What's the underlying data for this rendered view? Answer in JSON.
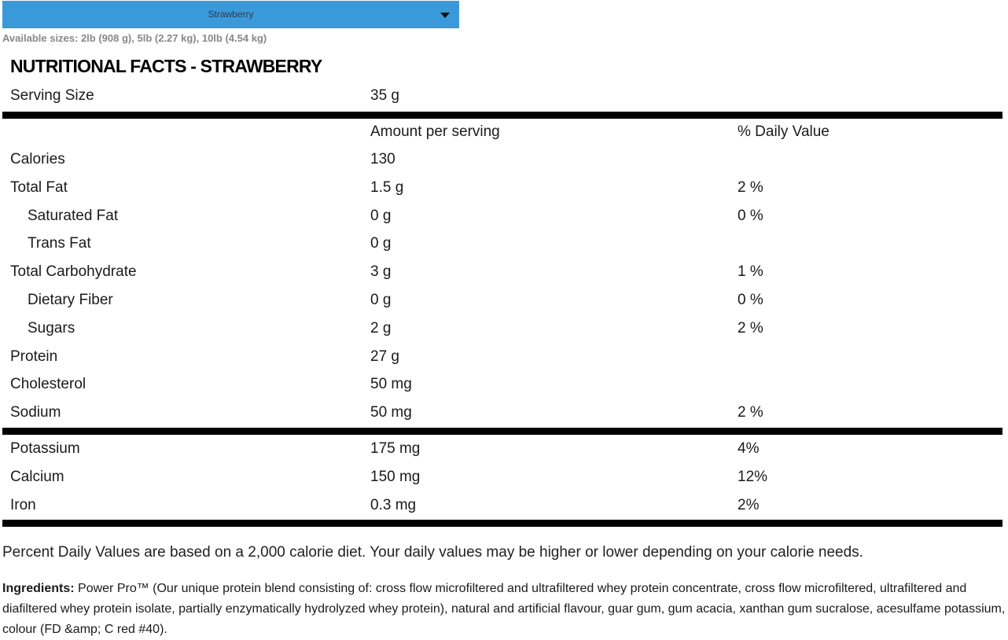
{
  "selector": {
    "value": "Strawberry"
  },
  "sizes": "Available sizes: 2lb (908 g), 5lb (2.27 kg), 10lb (4.54 kg)",
  "title": "NUTRITIONAL FACTS - STRAWBERRY",
  "serving": {
    "label": "Serving Size",
    "amount": "35 g"
  },
  "header": {
    "amount": "Amount per serving",
    "daily_value": "% Daily Value"
  },
  "nutrients": [
    {
      "name": "Calories",
      "amount": "130"
    },
    {
      "name": "Total Fat",
      "amount": "1.5 g",
      "daily_value": "2 %",
      "sub": [
        {
          "name": "Saturated Fat",
          "amount": "0 g",
          "daily_value": "0 %"
        },
        {
          "name": "Trans Fat",
          "amount": "0 g"
        }
      ]
    },
    {
      "name": "Total Carbohydrate",
      "amount": "3 g",
      "daily_value": "1 %",
      "sub": [
        {
          "name": "Dietary Fiber",
          "amount": "0 g",
          "daily_value": "0 %"
        },
        {
          "name": "Sugars",
          "amount": "2 g",
          "daily_value": "2 %"
        }
      ]
    },
    {
      "name": "Protein",
      "amount": "27 g"
    },
    {
      "name": "Cholesterol",
      "amount": "50 mg"
    },
    {
      "name": "Sodium",
      "amount": "50 mg",
      "daily_value": "2 %"
    }
  ],
  "minerals": [
    {
      "name": "Potassium",
      "amount": "175 mg",
      "daily_value": "4%"
    },
    {
      "name": "Calcium",
      "amount": "150 mg",
      "daily_value": "12%"
    },
    {
      "name": "Iron",
      "amount": "0.3 mg",
      "daily_value": "2%"
    }
  ],
  "footnote": "Percent Daily Values are based on a 2,000 calorie diet. Your daily values may be higher or lower depending on your calorie needs.",
  "ingredients": {
    "label": "Ingredients:",
    "text": "Power Pro™ (Our unique protein blend consisting of: cross flow microfiltered and ultrafiltered whey protein concentrate, cross flow microfiltered, ultrafiltered and diafiltered whey protein isolate, partially enzymatically hydrolyzed whey protein), natural and artificial flavour, guar gum, gum acacia, xanthan gum sucralose, acesulfame potassium, colour (FD &amp; C red #40)."
  }
}
